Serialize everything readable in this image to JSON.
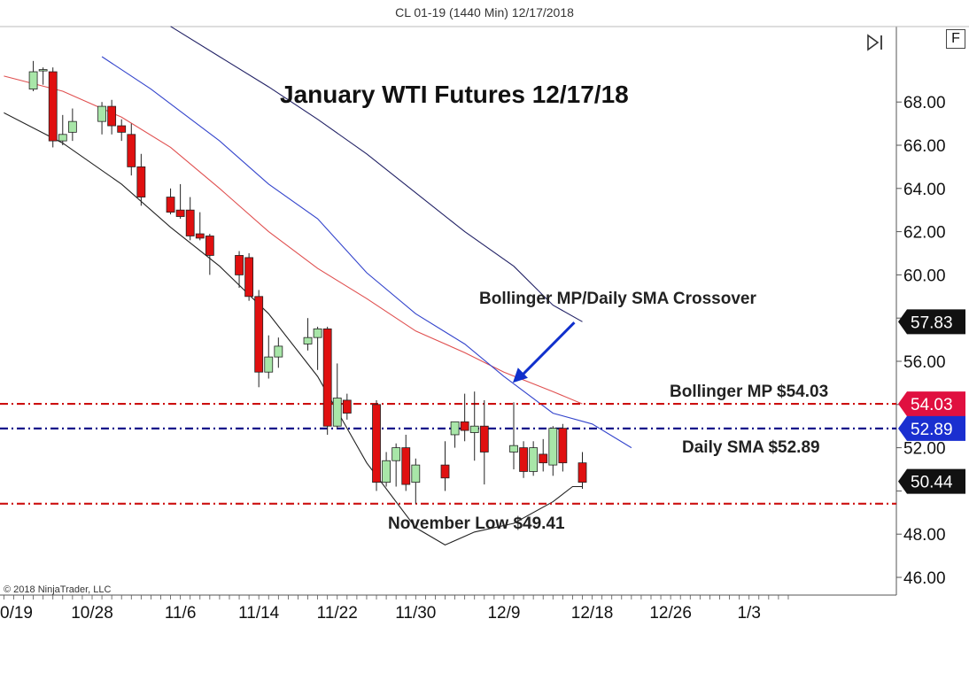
{
  "window": {
    "title": "CL 01-19 (1440 Min)  12/17/2018",
    "f_button": "F",
    "copyright": "© 2018 NinjaTrader, LLC"
  },
  "colors": {
    "up_candle": "#a8e6a8",
    "down_candle": "#e01010",
    "upper_band": "#222266",
    "middle_band": "#e05050",
    "lower_band": "#222222",
    "sma": "#3344cc",
    "level_red": "#cc1010",
    "level_blue": "#10108a",
    "arrow": "#1030cc"
  },
  "chart_data": {
    "type": "candlestick",
    "title": "January WTI Futures 12/17/18",
    "ylim": [
      45.05,
      70.8
    ],
    "y_ticks": [
      46,
      48,
      50,
      52,
      54,
      56,
      58,
      60,
      62,
      64,
      66,
      68
    ],
    "y_tick_labels": [
      "46.00",
      "48.00",
      "",
      "52.00",
      "",
      "56.00",
      "",
      "60.00",
      "62.00",
      "64.00",
      "66.00",
      "68.00"
    ],
    "x_ticks": [
      {
        "date": "2018-10-19",
        "label": "0/19"
      },
      {
        "date": "2018-10-28",
        "label": "10/28"
      },
      {
        "date": "2018-11-06",
        "label": "11/6"
      },
      {
        "date": "2018-11-14",
        "label": "11/14"
      },
      {
        "date": "2018-11-22",
        "label": "11/22"
      },
      {
        "date": "2018-11-30",
        "label": "11/30"
      },
      {
        "date": "2018-12-09",
        "label": "12/9"
      },
      {
        "date": "2018-12-18",
        "label": "12/18"
      },
      {
        "date": "2018-12-26",
        "label": "12/26"
      },
      {
        "date": "2019-01-03",
        "label": "1/3"
      }
    ],
    "candles": [
      {
        "date": "2018-10-22",
        "open": 68.6,
        "high": 69.9,
        "low": 68.5,
        "close": 69.4
      },
      {
        "date": "2018-10-23",
        "open": 69.5,
        "high": 69.6,
        "low": 68.8,
        "close": 69.5
      },
      {
        "date": "2018-10-24",
        "open": 69.4,
        "high": 69.6,
        "low": 65.9,
        "close": 66.2
      },
      {
        "date": "2018-10-25",
        "open": 66.2,
        "high": 67.4,
        "low": 66.0,
        "close": 66.5
      },
      {
        "date": "2018-10-26",
        "open": 66.6,
        "high": 67.7,
        "low": 66.2,
        "close": 67.1
      },
      {
        "date": "2018-10-29",
        "open": 67.1,
        "high": 68.0,
        "low": 66.5,
        "close": 67.8
      },
      {
        "date": "2018-10-30",
        "open": 67.8,
        "high": 68.1,
        "low": 66.5,
        "close": 66.9
      },
      {
        "date": "2018-10-31",
        "open": 66.9,
        "high": 67.2,
        "low": 66.2,
        "close": 66.6
      },
      {
        "date": "2018-11-01",
        "open": 66.5,
        "high": 67.0,
        "low": 64.6,
        "close": 65.0
      },
      {
        "date": "2018-11-02",
        "open": 65.0,
        "high": 65.6,
        "low": 63.2,
        "close": 63.6
      },
      {
        "date": "2018-11-05",
        "open": 63.6,
        "high": 64.0,
        "low": 62.8,
        "close": 62.9
      },
      {
        "date": "2018-11-06",
        "open": 63.0,
        "high": 64.2,
        "low": 62.6,
        "close": 62.7
      },
      {
        "date": "2018-11-07",
        "open": 63.0,
        "high": 63.6,
        "low": 61.6,
        "close": 61.8
      },
      {
        "date": "2018-11-08",
        "open": 61.9,
        "high": 62.9,
        "low": 61.6,
        "close": 61.7
      },
      {
        "date": "2018-11-09",
        "open": 61.8,
        "high": 61.9,
        "low": 60.0,
        "close": 60.9
      },
      {
        "date": "2018-11-12",
        "open": 60.9,
        "high": 61.1,
        "low": 59.4,
        "close": 60.0
      },
      {
        "date": "2018-11-13",
        "open": 60.8,
        "high": 61.0,
        "low": 58.8,
        "close": 59.0
      },
      {
        "date": "2018-11-14",
        "open": 59.0,
        "high": 59.3,
        "low": 54.8,
        "close": 55.5
      },
      {
        "date": "2018-11-15",
        "open": 55.5,
        "high": 57.2,
        "low": 55.2,
        "close": 56.2
      },
      {
        "date": "2018-11-16",
        "open": 56.2,
        "high": 57.1,
        "low": 55.7,
        "close": 56.7
      },
      {
        "date": "2018-11-19",
        "open": 56.8,
        "high": 58.0,
        "low": 56.5,
        "close": 57.1
      },
      {
        "date": "2018-11-20",
        "open": 57.1,
        "high": 57.6,
        "low": 55.6,
        "close": 57.5
      },
      {
        "date": "2018-11-21",
        "open": 57.5,
        "high": 57.6,
        "low": 52.6,
        "close": 53.0
      },
      {
        "date": "2018-11-22",
        "open": 53.0,
        "high": 55.9,
        "low": 52.9,
        "close": 54.3
      },
      {
        "date": "2018-11-23",
        "open": 54.2,
        "high": 54.5,
        "low": 53.3,
        "close": 53.6
      },
      {
        "date": "2018-11-26",
        "open": 54.0,
        "high": 54.2,
        "low": 50.0,
        "close": 50.4
      },
      {
        "date": "2018-11-27",
        "open": 50.4,
        "high": 51.8,
        "low": 50.2,
        "close": 51.4
      },
      {
        "date": "2018-11-28",
        "open": 51.4,
        "high": 52.2,
        "low": 50.2,
        "close": 52.0
      },
      {
        "date": "2018-11-29",
        "open": 52.0,
        "high": 52.6,
        "low": 50.0,
        "close": 50.3
      },
      {
        "date": "2018-11-30",
        "open": 50.4,
        "high": 51.5,
        "low": 49.4,
        "close": 51.2
      },
      {
        "date": "2018-12-03",
        "open": 51.2,
        "high": 52.3,
        "low": 50.0,
        "close": 50.6
      },
      {
        "date": "2018-12-04",
        "open": 52.6,
        "high": 53.0,
        "low": 52.0,
        "close": 53.2
      },
      {
        "date": "2018-12-05",
        "open": 53.2,
        "high": 54.5,
        "low": 52.3,
        "close": 52.8
      },
      {
        "date": "2018-12-06",
        "open": 52.7,
        "high": 54.6,
        "low": 51.4,
        "close": 53.0
      },
      {
        "date": "2018-12-07",
        "open": 53.0,
        "high": 54.2,
        "low": 50.3,
        "close": 51.8
      },
      {
        "date": "2018-12-10",
        "open": 51.8,
        "high": 54.1,
        "low": 51.0,
        "close": 52.1
      },
      {
        "date": "2018-12-11",
        "open": 52.0,
        "high": 52.3,
        "low": 50.6,
        "close": 50.9
      },
      {
        "date": "2018-12-12",
        "open": 50.9,
        "high": 52.3,
        "low": 50.7,
        "close": 52.0
      },
      {
        "date": "2018-12-13",
        "open": 51.7,
        "high": 52.4,
        "low": 50.9,
        "close": 51.3
      },
      {
        "date": "2018-12-14",
        "open": 51.2,
        "high": 53.0,
        "low": 50.7,
        "close": 52.9
      },
      {
        "date": "2018-12-15",
        "open": 52.9,
        "high": 53.1,
        "low": 50.9,
        "close": 51.3
      },
      {
        "date": "2018-12-17",
        "open": 51.3,
        "high": 51.8,
        "low": 50.1,
        "close": 50.4
      }
    ],
    "bollinger_upper": [
      {
        "date": "2018-11-05",
        "value": 71.5
      },
      {
        "date": "2018-11-10",
        "value": 70.1
      },
      {
        "date": "2018-11-15",
        "value": 68.7
      },
      {
        "date": "2018-11-20",
        "value": 67.2
      },
      {
        "date": "2018-11-25",
        "value": 65.6
      },
      {
        "date": "2018-11-30",
        "value": 63.8
      },
      {
        "date": "2018-12-05",
        "value": 62.0
      },
      {
        "date": "2018-12-10",
        "value": 60.4
      },
      {
        "date": "2018-12-14",
        "value": 58.6
      },
      {
        "date": "2018-12-17",
        "value": 57.83
      }
    ],
    "bollinger_middle": [
      {
        "date": "2018-10-19",
        "value": 69.2
      },
      {
        "date": "2018-10-25",
        "value": 68.5
      },
      {
        "date": "2018-10-31",
        "value": 67.3
      },
      {
        "date": "2018-11-05",
        "value": 65.9
      },
      {
        "date": "2018-11-10",
        "value": 64.0
      },
      {
        "date": "2018-11-15",
        "value": 62.0
      },
      {
        "date": "2018-11-20",
        "value": 60.3
      },
      {
        "date": "2018-11-25",
        "value": 58.9
      },
      {
        "date": "2018-11-30",
        "value": 57.4
      },
      {
        "date": "2018-12-05",
        "value": 56.4
      },
      {
        "date": "2018-12-09",
        "value": 55.5
      },
      {
        "date": "2018-12-14",
        "value": 54.6
      },
      {
        "date": "2018-12-17",
        "value": 54.03
      }
    ],
    "daily_sma": [
      {
        "date": "2018-10-29",
        "value": 70.1
      },
      {
        "date": "2018-11-03",
        "value": 68.6
      },
      {
        "date": "2018-11-10",
        "value": 66.2
      },
      {
        "date": "2018-11-15",
        "value": 64.2
      },
      {
        "date": "2018-11-20",
        "value": 62.6
      },
      {
        "date": "2018-11-25",
        "value": 60.1
      },
      {
        "date": "2018-11-30",
        "value": 58.2
      },
      {
        "date": "2018-12-05",
        "value": 56.8
      },
      {
        "date": "2018-12-09",
        "value": 55.3
      },
      {
        "date": "2018-12-14",
        "value": 53.6
      },
      {
        "date": "2018-12-18",
        "value": 53.1
      },
      {
        "date": "2018-12-22",
        "value": 52.0
      }
    ],
    "bollinger_lower": [
      {
        "date": "2018-10-19",
        "value": 67.5
      },
      {
        "date": "2018-10-25",
        "value": 66.1
      },
      {
        "date": "2018-10-31",
        "value": 64.2
      },
      {
        "date": "2018-11-05",
        "value": 62.2
      },
      {
        "date": "2018-11-10",
        "value": 60.4
      },
      {
        "date": "2018-11-15",
        "value": 58.2
      },
      {
        "date": "2018-11-20",
        "value": 55.3
      },
      {
        "date": "2018-11-25",
        "value": 51.3
      },
      {
        "date": "2018-11-30",
        "value": 48.3
      },
      {
        "date": "2018-12-03",
        "value": 47.5
      },
      {
        "date": "2018-12-06",
        "value": 48.1
      },
      {
        "date": "2018-12-10",
        "value": 48.5
      },
      {
        "date": "2018-12-14",
        "value": 49.5
      },
      {
        "date": "2018-12-16",
        "value": 50.2
      },
      {
        "date": "2018-12-17",
        "value": 50.2
      }
    ],
    "levels": [
      {
        "name": "Bollinger MP",
        "value": 54.03,
        "label": "Bollinger MP $54.03",
        "tag": "54.03",
        "color": "level_red",
        "tag_bg": "#e01040"
      },
      {
        "name": "Daily SMA",
        "value": 52.89,
        "label": "Daily SMA $52.89",
        "tag": "52.89",
        "color": "level_blue",
        "tag_bg": "#1a2fd0"
      },
      {
        "name": "November Low",
        "value": 49.41,
        "label": "November Low $49.41",
        "tag": "",
        "color": "level_red",
        "tag_bg": ""
      }
    ],
    "price_tags": [
      {
        "value": 57.83,
        "text": "57.83",
        "bg": "#111111"
      },
      {
        "value": 54.03,
        "text": "54.03",
        "bg": "#e01040"
      },
      {
        "value": 52.89,
        "text": "52.89",
        "bg": "#1a2fd0"
      },
      {
        "value": 50.44,
        "text": "50.44",
        "bg": "#111111"
      }
    ],
    "annotations": {
      "crossover": "Bollinger MP/Daily SMA Crossover",
      "crossover_point": {
        "date": "2018-12-09",
        "value": 55.5
      },
      "arrow_tail": {
        "date": "2018-12-16",
        "value": 58.0
      }
    },
    "grid": false,
    "legend": "none"
  }
}
